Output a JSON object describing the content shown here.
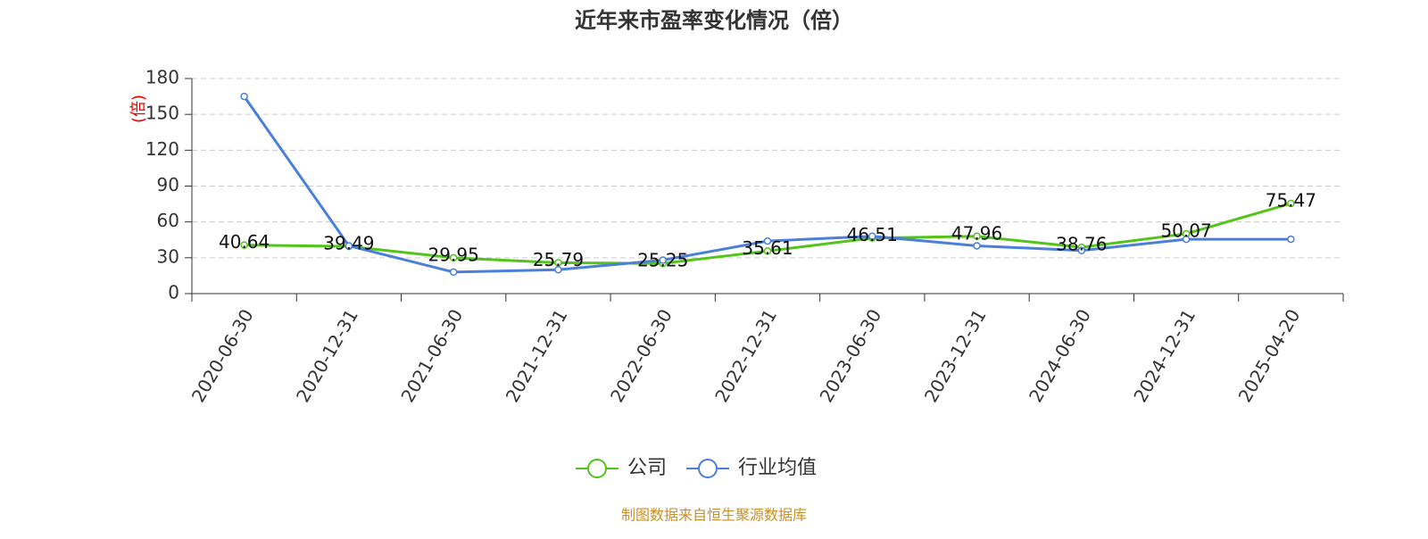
{
  "chart_data": {
    "type": "line",
    "title": "近年来市盈率变化情况（倍）",
    "y_label": "(倍)",
    "source": "制图数据来自恒生聚源数据库",
    "categories": [
      "2020-06-30",
      "2020-12-31",
      "2021-06-30",
      "2021-12-31",
      "2022-06-30",
      "2022-12-31",
      "2023-06-30",
      "2023-12-31",
      "2024-06-30",
      "2024-12-31",
      "2025-04-20"
    ],
    "series": [
      {
        "name": "公司",
        "color": "#52c41a",
        "values": [
          40.64,
          39.49,
          29.95,
          25.79,
          25.25,
          35.61,
          46.51,
          47.96,
          38.76,
          50.07,
          75.47
        ],
        "labels": true
      },
      {
        "name": "行业均值",
        "color": "#4a7fdc",
        "values": [
          165,
          40,
          18,
          20,
          28,
          44,
          48,
          40,
          36,
          45.5,
          45.5
        ],
        "labels": false
      }
    ],
    "ylim": [
      0,
      180
    ],
    "yticks": [
      0,
      30,
      60,
      90,
      120,
      150,
      180
    ],
    "grid": true
  }
}
